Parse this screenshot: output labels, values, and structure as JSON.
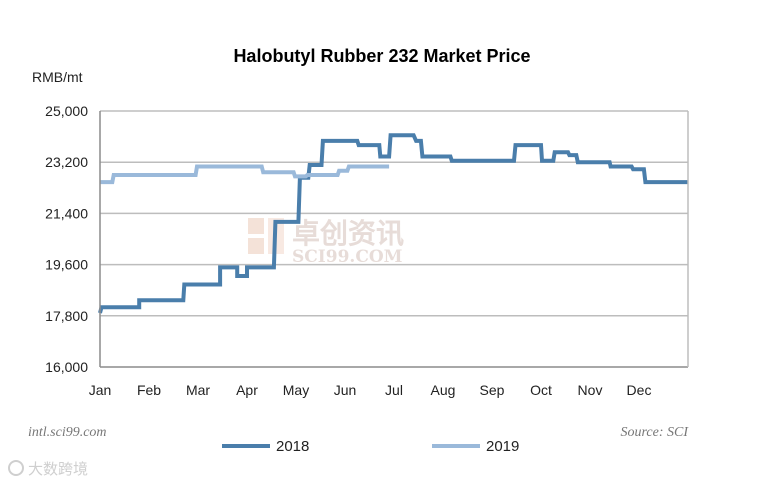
{
  "chart_data": {
    "type": "line",
    "title": "Halobutyl Rubber 232 Market Price",
    "ylabel": "RMB/mt",
    "xlabel": "",
    "ylim": [
      16000,
      25000
    ],
    "yticks": [
      "16,000",
      "17,800",
      "19,600",
      "21,400",
      "23,200",
      "25,000"
    ],
    "ytick_values": [
      16000,
      17800,
      19600,
      21400,
      23200,
      25000
    ],
    "xlim": [
      0,
      12
    ],
    "months": [
      "Jan",
      "Feb",
      "Mar",
      "Apr",
      "May",
      "Jun",
      "Jul",
      "Aug",
      "Sep",
      "Oct",
      "Nov",
      "Dec"
    ],
    "grid": "horizontal",
    "legend_position": "bottom",
    "series": [
      {
        "name": "2018",
        "color": "#4a7eab",
        "points": [
          [
            0.0,
            17900
          ],
          [
            0.03,
            18100
          ],
          [
            0.8,
            18100
          ],
          [
            0.8,
            18350
          ],
          [
            1.7,
            18350
          ],
          [
            1.72,
            18900
          ],
          [
            2.45,
            18900
          ],
          [
            2.45,
            19500
          ],
          [
            2.8,
            19500
          ],
          [
            2.8,
            19200
          ],
          [
            3.0,
            19200
          ],
          [
            3.0,
            19500
          ],
          [
            3.55,
            19500
          ],
          [
            3.58,
            21100
          ],
          [
            4.05,
            21100
          ],
          [
            4.08,
            22650
          ],
          [
            4.25,
            22650
          ],
          [
            4.28,
            23100
          ],
          [
            4.52,
            23100
          ],
          [
            4.55,
            23950
          ],
          [
            5.25,
            23950
          ],
          [
            5.28,
            23800
          ],
          [
            5.7,
            23800
          ],
          [
            5.72,
            23400
          ],
          [
            5.9,
            23400
          ],
          [
            5.93,
            24150
          ],
          [
            6.4,
            24150
          ],
          [
            6.45,
            23950
          ],
          [
            6.55,
            23950
          ],
          [
            6.58,
            23400
          ],
          [
            7.15,
            23400
          ],
          [
            7.18,
            23250
          ],
          [
            8.45,
            23250
          ],
          [
            8.48,
            23800
          ],
          [
            9.0,
            23800
          ],
          [
            9.02,
            23250
          ],
          [
            9.25,
            23250
          ],
          [
            9.28,
            23550
          ],
          [
            9.55,
            23550
          ],
          [
            9.58,
            23450
          ],
          [
            9.72,
            23450
          ],
          [
            9.75,
            23200
          ],
          [
            10.4,
            23200
          ],
          [
            10.42,
            23050
          ],
          [
            10.85,
            23050
          ],
          [
            10.88,
            22950
          ],
          [
            11.1,
            22950
          ],
          [
            11.13,
            22500
          ],
          [
            12.0,
            22500
          ]
        ]
      },
      {
        "name": "2019",
        "color": "#9ab9da",
        "points": [
          [
            0.0,
            22500
          ],
          [
            0.25,
            22500
          ],
          [
            0.28,
            22750
          ],
          [
            1.95,
            22750
          ],
          [
            1.98,
            23050
          ],
          [
            3.3,
            23050
          ],
          [
            3.33,
            22850
          ],
          [
            3.95,
            22850
          ],
          [
            3.98,
            22700
          ],
          [
            4.2,
            22700
          ],
          [
            4.23,
            22750
          ],
          [
            4.85,
            22750
          ],
          [
            4.88,
            22900
          ],
          [
            5.05,
            22900
          ],
          [
            5.08,
            23050
          ],
          [
            5.9,
            23050
          ]
        ]
      }
    ]
  },
  "footer": {
    "left": "intl.sci99.com",
    "right": "Source: SCI"
  },
  "watermark": {
    "cn": "卓创资讯",
    "en": "SCI99.COM",
    "corner": "大数跨境"
  }
}
